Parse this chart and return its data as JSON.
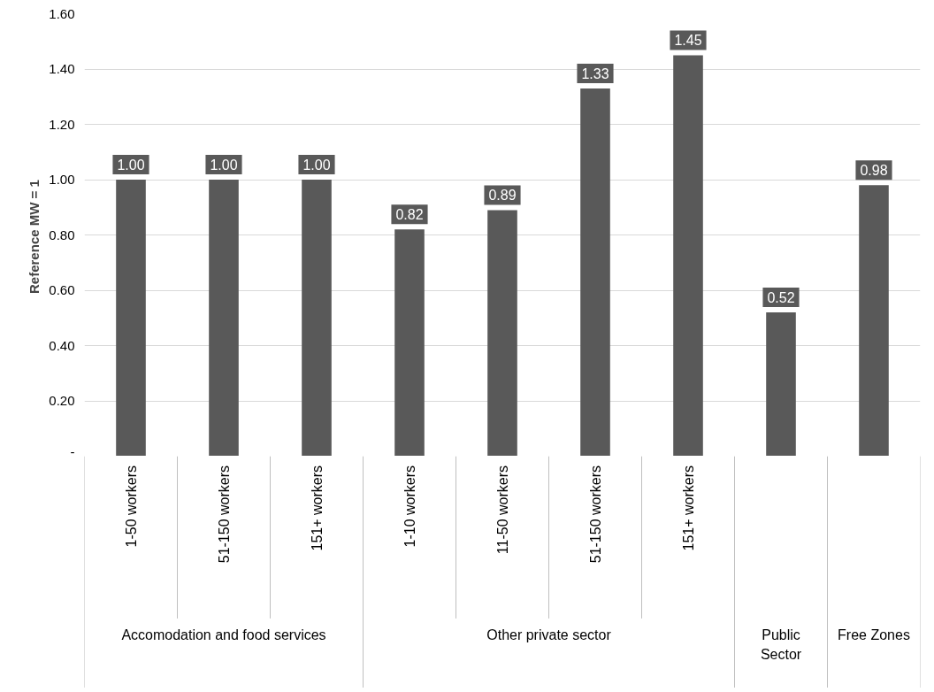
{
  "chart_data": {
    "type": "bar",
    "ylabel": "Reference  MW = 1",
    "categories": [
      "1-50 workers",
      "51-150 workers",
      "151+ workers",
      "1-10 workers",
      "11-50 workers",
      "51-150 workers",
      "151+ workers",
      null,
      null
    ],
    "values": [
      1.0,
      1.0,
      1.0,
      0.82,
      0.89,
      1.33,
      1.45,
      0.52,
      0.98
    ],
    "value_labels": [
      "1.00",
      "1.00",
      "1.00",
      "0.82",
      "0.89",
      "1.33",
      "1.45",
      "0.52",
      "0.98"
    ],
    "color": "#595959",
    "annotations": [
      "Accomodation and food services",
      "Other private sector",
      "Public Sector",
      "Free Zones"
    ],
    "ylim": [
      0,
      1.6
    ],
    "yticks": [
      {
        "value": 0,
        "label": "-"
      },
      {
        "value": 0.2,
        "label": "0.20"
      },
      {
        "value": 0.4,
        "label": "0.40"
      },
      {
        "value": 0.6,
        "label": "0.60"
      },
      {
        "value": 0.8,
        "label": "0.80"
      },
      {
        "value": 1.0,
        "label": "1.00"
      },
      {
        "value": 1.2,
        "label": "1.20"
      },
      {
        "value": 1.4,
        "label": "1.40"
      },
      {
        "value": 1.6,
        "label": "1.60"
      }
    ],
    "grid": "y"
  }
}
